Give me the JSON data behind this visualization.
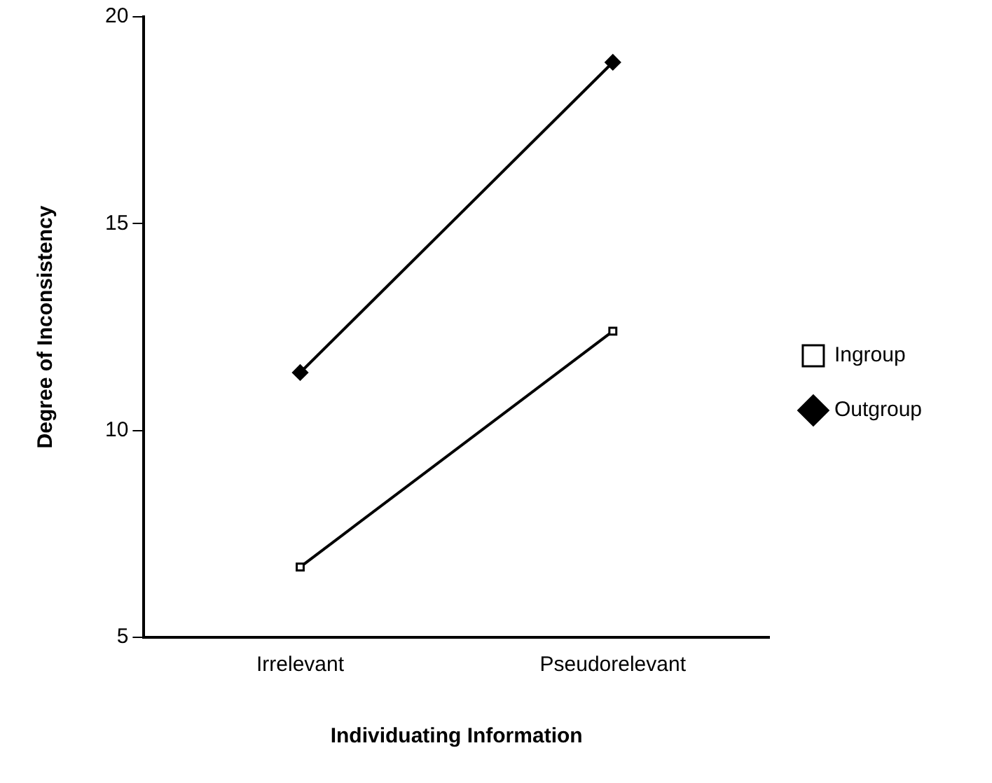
{
  "chart_data": {
    "type": "line",
    "xlabel": "Individuating Information",
    "ylabel": "Degree of Inconsistency",
    "categories": [
      "Irrelevant",
      "Pseudorelevant"
    ],
    "series": [
      {
        "name": "Ingroup",
        "color": "#000000",
        "values": [
          6.7,
          12.4
        ],
        "marker": "square"
      },
      {
        "name": "Outgroup",
        "color": "#000000",
        "values": [
          11.4,
          18.9
        ],
        "marker": "diamond"
      }
    ],
    "ylim": [
      5,
      20
    ],
    "yticks": [
      5,
      10,
      15,
      20
    ],
    "grid": false,
    "legend": "right",
    "line_style": "solid"
  }
}
